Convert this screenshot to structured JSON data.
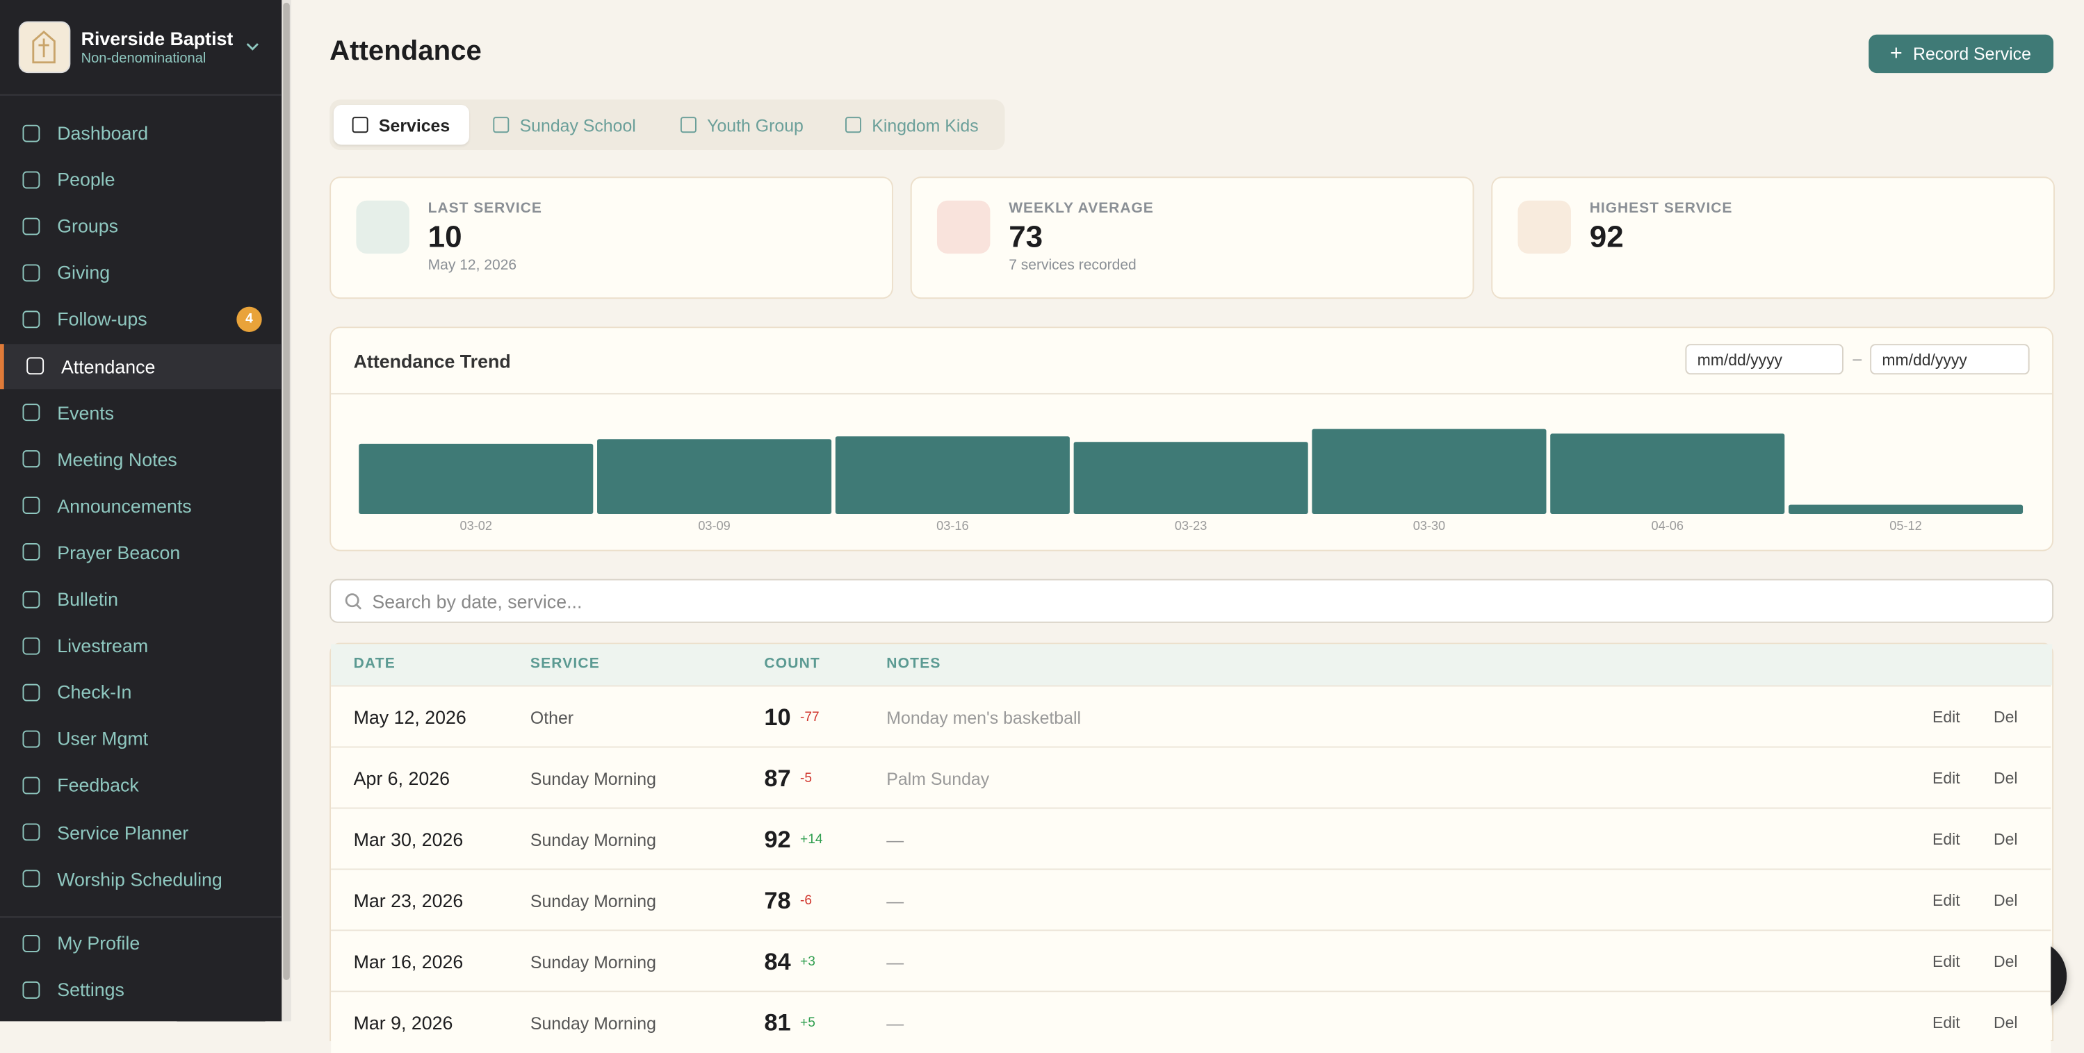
{
  "sidebar": {
    "church_name": "Riverside Baptist",
    "church_type": "Non-denominational",
    "nav": [
      {
        "label": "Dashboard"
      },
      {
        "label": "People"
      },
      {
        "label": "Groups"
      },
      {
        "label": "Giving"
      },
      {
        "label": "Follow-ups",
        "badge": 4
      },
      {
        "label": "Attendance",
        "active": true
      },
      {
        "label": "Events"
      },
      {
        "label": "Meeting Notes"
      },
      {
        "label": "Announcements"
      },
      {
        "label": "Prayer Beacon"
      },
      {
        "label": "Bulletin"
      },
      {
        "label": "Livestream"
      },
      {
        "label": "Check-In"
      },
      {
        "label": "User Mgmt"
      },
      {
        "label": "Feedback"
      },
      {
        "label": "Service Planner"
      },
      {
        "label": "Worship Scheduling"
      }
    ],
    "footer": [
      {
        "label": "My Profile"
      },
      {
        "label": "Settings"
      }
    ]
  },
  "header": {
    "title": "Attendance",
    "action": "Record Service"
  },
  "tabs": [
    {
      "label": "Services",
      "active": true
    },
    {
      "label": "Sunday School"
    },
    {
      "label": "Youth Group"
    },
    {
      "label": "Kingdom Kids"
    }
  ],
  "stats": [
    {
      "label": "LAST SERVICE",
      "value": 10,
      "sub": "May 12, 2026"
    },
    {
      "label": "WEEKLY AVERAGE",
      "value": 73,
      "sub": "7 services recorded"
    },
    {
      "label": "HIGHEST SERVICE",
      "value": 92
    }
  ],
  "trend": {
    "title": "Attendance Trend",
    "date_placeholder": "mm/dd/yyyy",
    "separator": "–",
    "color": "#3f7a76",
    "categories": [
      "03-02",
      "03-09",
      "03-16",
      "03-23",
      "03-30",
      "04-06",
      "05-12"
    ],
    "values": [
      76,
      81,
      84,
      78,
      92,
      87,
      10
    ]
  },
  "search_placeholder": "Search by date, service...",
  "table": {
    "columns": [
      "DATE",
      "SERVICE",
      "COUNT",
      "NOTES"
    ],
    "actions": [
      "Edit",
      "Del"
    ],
    "rows": [
      {
        "date": "May 12, 2026",
        "service": "Other",
        "count": 10,
        "change": "-77",
        "notes": "Monday men's basketball"
      },
      {
        "date": "Apr 6, 2026",
        "service": "Sunday Morning",
        "count": 87,
        "change": "-5",
        "notes": "Palm Sunday"
      },
      {
        "date": "Mar 30, 2026",
        "service": "Sunday Morning",
        "count": 92,
        "change": "+14",
        "notes": "—"
      },
      {
        "date": "Mar 23, 2026",
        "service": "Sunday Morning",
        "count": 78,
        "change": "-6",
        "notes": "—"
      },
      {
        "date": "Mar 16, 2026",
        "service": "Sunday Morning",
        "count": 84,
        "change": "+3",
        "notes": "—"
      },
      {
        "date": "Mar 9, 2026",
        "service": "Sunday Morning",
        "count": 81,
        "change": "+5",
        "notes": "—"
      }
    ]
  }
}
